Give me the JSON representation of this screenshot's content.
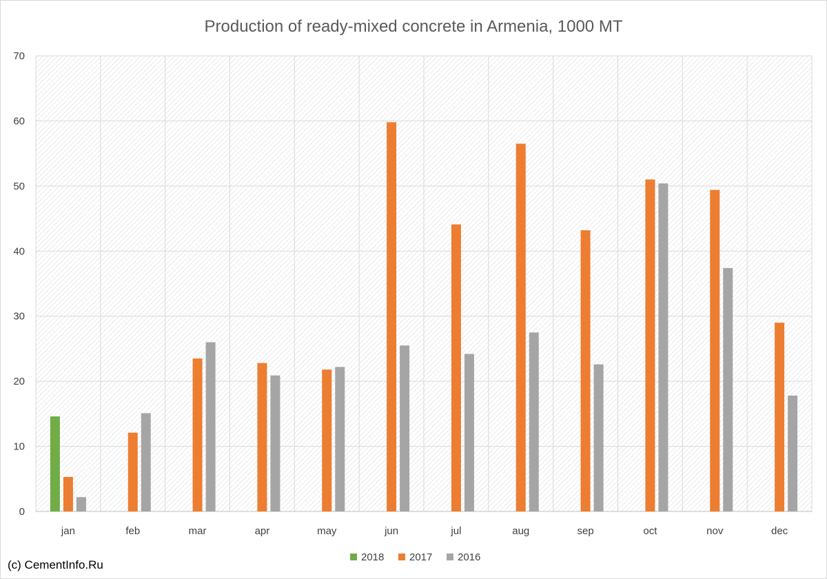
{
  "chart_data": {
    "type": "bar",
    "title": "Production of ready-mixed concrete in Armenia, 1000 MT",
    "xlabel": "",
    "ylabel": "",
    "categories": [
      "jan",
      "feb",
      "mar",
      "apr",
      "may",
      "jun",
      "jul",
      "aug",
      "sep",
      "oct",
      "nov",
      "dec"
    ],
    "series": [
      {
        "name": "2018",
        "color": "#70ad47",
        "values": [
          14.6,
          null,
          null,
          null,
          null,
          null,
          null,
          null,
          null,
          null,
          null,
          null
        ]
      },
      {
        "name": "2017",
        "color": "#ed7d31",
        "values": [
          5.3,
          12.1,
          23.5,
          22.8,
          21.8,
          59.8,
          44.1,
          56.5,
          43.2,
          51.0,
          49.4,
          29.0
        ]
      },
      {
        "name": "2016",
        "color": "#a5a5a5",
        "values": [
          2.2,
          15.1,
          26.0,
          20.9,
          22.2,
          25.5,
          24.2,
          27.5,
          22.6,
          50.4,
          37.4,
          17.8
        ]
      }
    ],
    "ylim": [
      0,
      70
    ],
    "yticks": [
      0,
      10,
      20,
      30,
      40,
      50,
      60,
      70
    ],
    "grid": true,
    "legend_position": "bottom"
  },
  "footer": {
    "copyright": "(c) CementInfo.Ru"
  }
}
